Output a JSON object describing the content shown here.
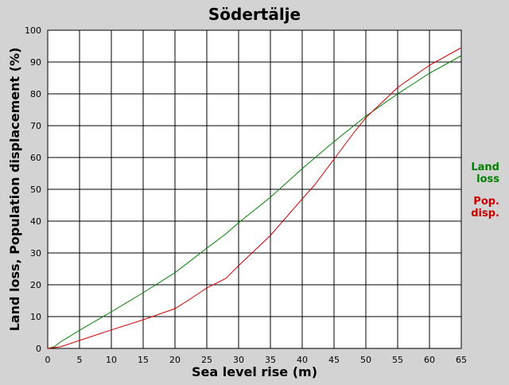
{
  "chart_data": {
    "type": "line",
    "title": "Södertälje",
    "xlabel": "Sea level rise (m)",
    "ylabel": "Land loss, Population displacement (%)",
    "xlim": [
      0,
      65
    ],
    "ylim": [
      0,
      100
    ],
    "xticks": [
      0,
      5,
      10,
      15,
      20,
      25,
      30,
      35,
      40,
      45,
      50,
      55,
      60,
      65
    ],
    "yticks": [
      0,
      10,
      20,
      30,
      40,
      50,
      60,
      70,
      80,
      90,
      100
    ],
    "grid": true,
    "legend_position": "right",
    "legend": [
      {
        "lines": [
          "Land",
          "loss"
        ],
        "color": "#008000"
      },
      {
        "lines": [
          "Pop.",
          "disp."
        ],
        "color": "#cc0000"
      }
    ],
    "series": [
      {
        "color": "#008000",
        "x": [
          0,
          1,
          2,
          5,
          10,
          15,
          20,
          25,
          28,
          30,
          35,
          40,
          45,
          50,
          55,
          60,
          65
        ],
        "y": [
          0,
          0.5,
          2,
          5.7,
          11.5,
          17.5,
          23.8,
          31.5,
          36,
          39.5,
          47.5,
          56.5,
          65,
          73,
          80,
          86.5,
          92
        ]
      },
      {
        "color": "#cc0000",
        "x": [
          0,
          2,
          5,
          8,
          10,
          15,
          20,
          22,
          25,
          28,
          30,
          35,
          40,
          42,
          45,
          48,
          50,
          55,
          60,
          65
        ],
        "y": [
          0,
          0.5,
          2.5,
          4.5,
          5.8,
          9,
          12.5,
          15,
          19,
          22,
          26,
          35.5,
          47,
          51.5,
          59.5,
          67.5,
          72.5,
          82,
          89,
          94.5
        ]
      }
    ]
  }
}
